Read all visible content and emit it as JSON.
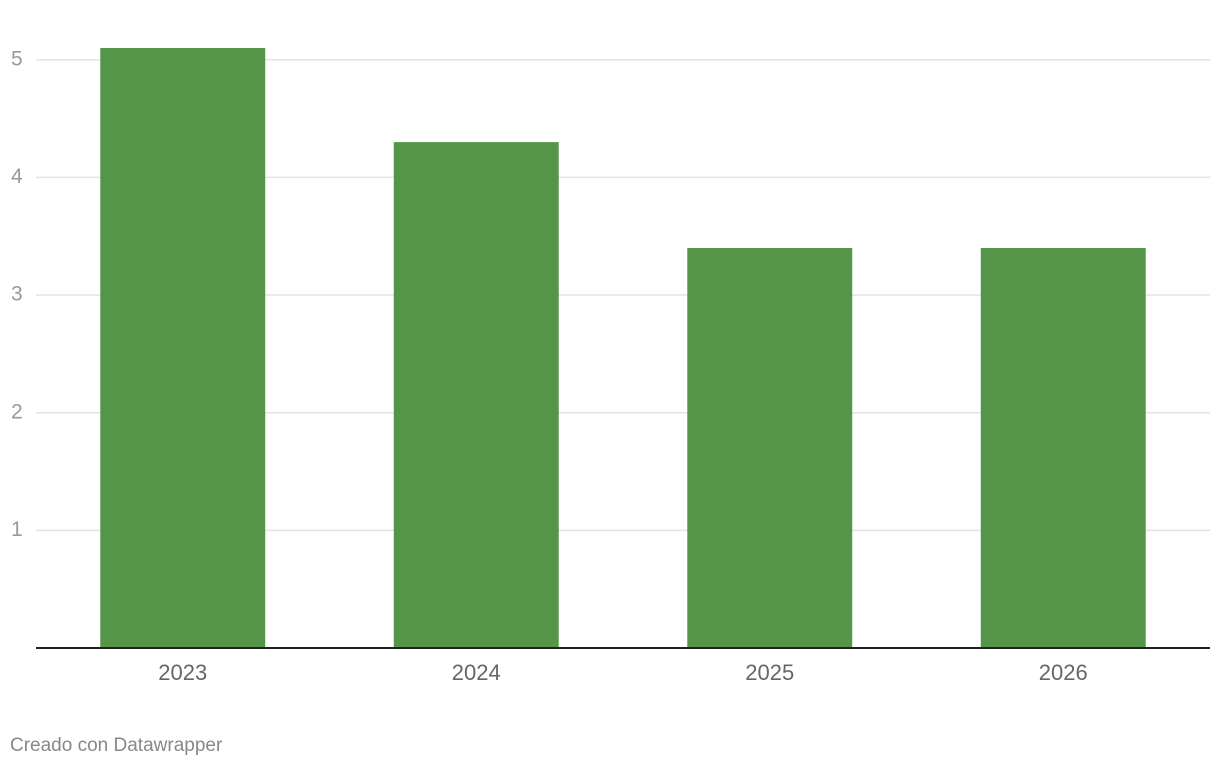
{
  "chart_data": {
    "type": "bar",
    "categories": [
      "2023",
      "2024",
      "2025",
      "2026"
    ],
    "values": [
      5.1,
      4.3,
      3.4,
      3.4
    ],
    "color": "#559547",
    "ylim": [
      0,
      5.1
    ],
    "yticks": [
      1,
      2,
      3,
      4,
      5
    ],
    "grid": true,
    "credit": "Creado con Datawrapper"
  }
}
